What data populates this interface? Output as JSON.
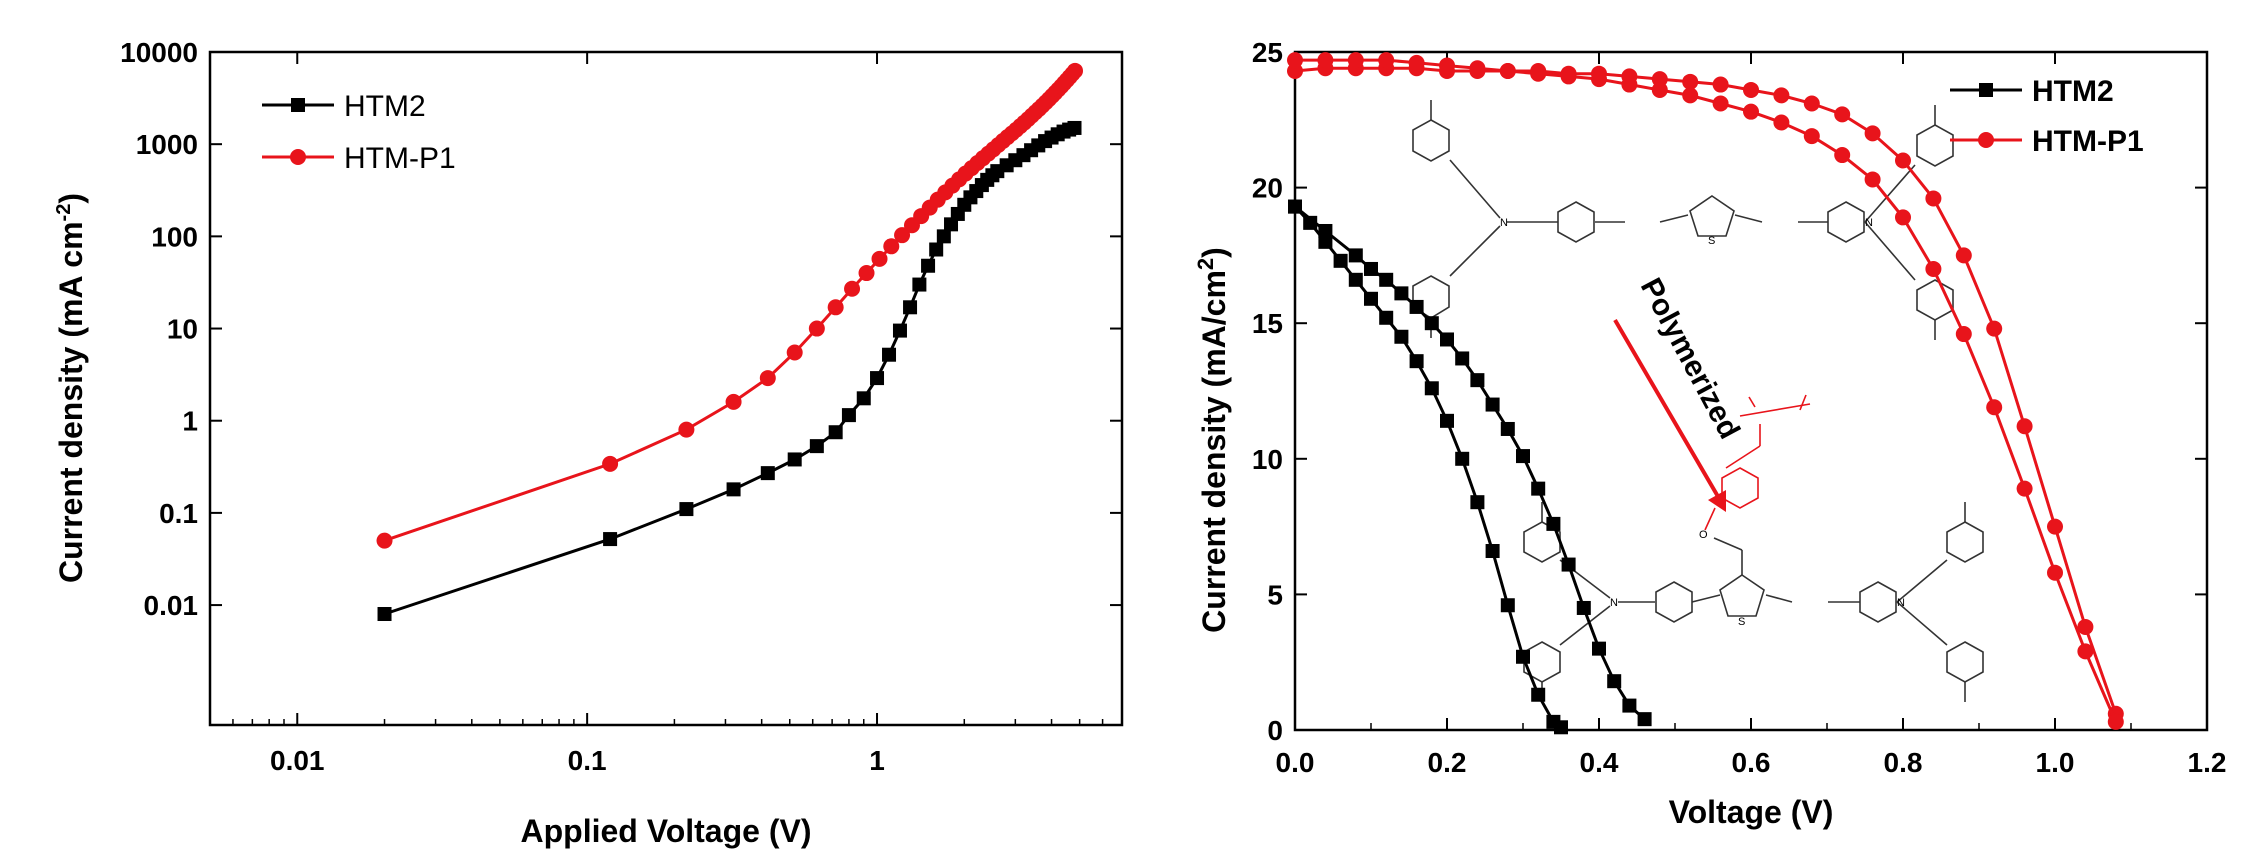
{
  "chart_data": [
    {
      "type": "line",
      "title": "",
      "xlabel": "Applied Voltage (V)",
      "ylabel_main": "Current density (mA cm",
      "ylabel_sup": "-2",
      "ylabel_close": ")",
      "xscale": "log",
      "yscale": "log",
      "xlim": [
        0.005,
        7
      ],
      "ylim": [
        0.0005,
        10000
      ],
      "xticks": [
        0.01,
        0.1,
        1
      ],
      "xtick_labels": [
        "0.01",
        "0.1",
        "1"
      ],
      "yticks": [
        0.01,
        0.1,
        1,
        10,
        100,
        1000,
        10000
      ],
      "ytick_labels": [
        "0.01",
        "0.1",
        "1",
        "10",
        "100",
        "1000",
        "10000"
      ],
      "legend_position": "top-left",
      "series": [
        {
          "name": "HTM2",
          "color": "#000000",
          "marker": "square",
          "x": [
            0.02,
            0.12,
            0.22,
            0.32,
            0.42,
            0.52,
            0.62,
            0.72,
            0.8,
            0.9,
            1.0,
            1.1,
            1.2,
            1.3,
            1.4,
            1.5,
            1.6,
            1.7,
            1.8,
            1.9,
            2.0,
            2.1,
            2.2,
            2.3,
            2.4,
            2.5,
            2.6,
            2.8,
            3.0,
            3.2,
            3.4,
            3.6,
            3.8,
            4.0,
            4.2,
            4.4,
            4.6,
            4.8
          ],
          "y": [
            0.008,
            0.052,
            0.11,
            0.18,
            0.27,
            0.38,
            0.53,
            0.75,
            1.15,
            1.75,
            2.9,
            5.2,
            9.5,
            17,
            30,
            48,
            72,
            100,
            135,
            175,
            220,
            265,
            310,
            360,
            410,
            460,
            510,
            590,
            670,
            760,
            860,
            970,
            1080,
            1180,
            1280,
            1370,
            1440,
            1500
          ]
        },
        {
          "name": "HTM-P1",
          "color": "#e8141b",
          "marker": "circle",
          "x": [
            0.02,
            0.12,
            0.22,
            0.32,
            0.42,
            0.52,
            0.62,
            0.72,
            0.82,
            0.92,
            1.02,
            1.12,
            1.22,
            1.32,
            1.42,
            1.52,
            1.62,
            1.72,
            1.82,
            1.92,
            2.02,
            2.12,
            2.22,
            2.32,
            2.42,
            2.52,
            2.62,
            2.72,
            2.82,
            2.92,
            3.02,
            3.12,
            3.22,
            3.32,
            3.42,
            3.52,
            3.62,
            3.72,
            3.82,
            3.92,
            4.02,
            4.12,
            4.22,
            4.32,
            4.42,
            4.52,
            4.62,
            4.72,
            4.82
          ],
          "y": [
            0.05,
            0.34,
            0.8,
            1.6,
            2.9,
            5.5,
            10,
            17,
            27,
            40,
            57,
            78,
            103,
            132,
            166,
            205,
            250,
            300,
            355,
            415,
            480,
            550,
            625,
            705,
            790,
            880,
            980,
            1085,
            1195,
            1310,
            1435,
            1570,
            1715,
            1870,
            2040,
            2220,
            2410,
            2620,
            2840,
            3080,
            3340,
            3620,
            3920,
            4240,
            4590,
            4960,
            5360,
            5790,
            6250
          ]
        }
      ]
    },
    {
      "type": "line",
      "title": "",
      "xlabel": "Voltage (V)",
      "ylabel_main": "Current density (mA/cm",
      "ylabel_sup": "2",
      "ylabel_close": ")",
      "xlim": [
        0,
        1.2
      ],
      "ylim": [
        0,
        25
      ],
      "xticks": [
        0.0,
        0.2,
        0.4,
        0.6,
        0.8,
        1.0,
        1.2
      ],
      "xtick_labels": [
        "0.0",
        "0.2",
        "0.4",
        "0.6",
        "0.8",
        "1.0",
        "1.2"
      ],
      "yticks": [
        0,
        5,
        10,
        15,
        20,
        25
      ],
      "ytick_labels": [
        "0",
        "5",
        "10",
        "15",
        "20",
        "25"
      ],
      "legend_position": "top-right",
      "annotation": "Polymerized",
      "inset_atoms": [
        "N",
        "N",
        "S",
        "N",
        "N",
        "S",
        "O"
      ],
      "series": [
        {
          "name": "HTM2",
          "color": "#000000",
          "marker": "square",
          "curves": [
            {
              "x": [
                0.0,
                0.02,
                0.04,
                0.06,
                0.08,
                0.1,
                0.12,
                0.14,
                0.16,
                0.18,
                0.2,
                0.22,
                0.24,
                0.26,
                0.28,
                0.3,
                0.32,
                0.34,
                0.35
              ],
              "y": [
                19.3,
                18.7,
                18.0,
                17.3,
                16.6,
                15.9,
                15.2,
                14.5,
                13.6,
                12.6,
                11.4,
                10.0,
                8.4,
                6.6,
                4.6,
                2.7,
                1.3,
                0.3,
                0.1
              ]
            },
            {
              "x": [
                0.0,
                0.04,
                0.08,
                0.1,
                0.12,
                0.14,
                0.16,
                0.18,
                0.2,
                0.22,
                0.24,
                0.26,
                0.28,
                0.3,
                0.32,
                0.34,
                0.36,
                0.38,
                0.4,
                0.42,
                0.44,
                0.46
              ],
              "y": [
                19.3,
                18.4,
                17.5,
                17.0,
                16.6,
                16.1,
                15.6,
                15.0,
                14.4,
                13.7,
                12.9,
                12.0,
                11.1,
                10.1,
                8.9,
                7.6,
                6.1,
                4.5,
                3.0,
                1.8,
                0.9,
                0.4
              ]
            }
          ]
        },
        {
          "name": "HTM-P1",
          "color": "#e8141b",
          "marker": "circle",
          "curves": [
            {
              "x": [
                0.0,
                0.04,
                0.08,
                0.12,
                0.16,
                0.2,
                0.24,
                0.28,
                0.32,
                0.36,
                0.4,
                0.44,
                0.48,
                0.52,
                0.56,
                0.6,
                0.64,
                0.68,
                0.72,
                0.76,
                0.8,
                0.84,
                0.88,
                0.92,
                0.96,
                1.0,
                1.04,
                1.08
              ],
              "y": [
                24.3,
                24.4,
                24.4,
                24.4,
                24.4,
                24.3,
                24.3,
                24.3,
                24.3,
                24.2,
                24.2,
                24.1,
                24.0,
                23.9,
                23.8,
                23.6,
                23.4,
                23.1,
                22.7,
                22.0,
                21.0,
                19.6,
                17.5,
                14.8,
                11.2,
                7.5,
                3.8,
                0.6
              ]
            },
            {
              "x": [
                0.0,
                0.04,
                0.08,
                0.12,
                0.16,
                0.2,
                0.24,
                0.28,
                0.32,
                0.36,
                0.4,
                0.44,
                0.48,
                0.52,
                0.56,
                0.6,
                0.64,
                0.68,
                0.72,
                0.76,
                0.8,
                0.84,
                0.88,
                0.92,
                0.96,
                1.0,
                1.04,
                1.08
              ],
              "y": [
                24.7,
                24.7,
                24.7,
                24.7,
                24.6,
                24.5,
                24.4,
                24.3,
                24.2,
                24.1,
                24.0,
                23.8,
                23.6,
                23.4,
                23.1,
                22.8,
                22.4,
                21.9,
                21.2,
                20.3,
                18.9,
                17.0,
                14.6,
                11.9,
                8.9,
                5.8,
                2.9,
                0.3
              ]
            }
          ]
        }
      ]
    }
  ]
}
